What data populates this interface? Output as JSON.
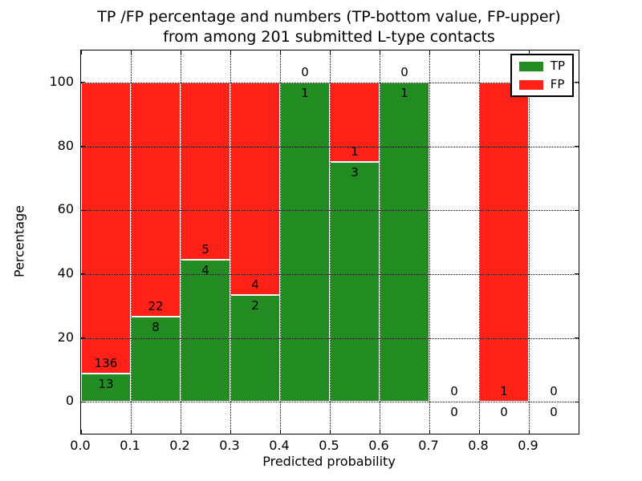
{
  "title": {
    "line1": "TP /FP percentage and numbers (TP-bottom value, FP-upper)",
    "line2": "from among 201 submitted L-type contacts"
  },
  "axes": {
    "xlabel": "Predicted probability",
    "ylabel": "Percentage"
  },
  "legend": {
    "items": [
      {
        "label": "TP",
        "color": "#228b22"
      },
      {
        "label": "FP",
        "color": "#ff2018"
      }
    ]
  },
  "chart_data": {
    "type": "bar",
    "subtype": "stacked-percentage-histogram",
    "title": "TP /FP percentage and numbers (TP-bottom value, FP-upper) from among 201 submitted L-type contacts",
    "xlabel": "Predicted probability",
    "ylabel": "Percentage",
    "total_contacts": 201,
    "bin_width": 0.1,
    "categories": [
      "0.0-0.1",
      "0.1-0.2",
      "0.2-0.3",
      "0.3-0.4",
      "0.4-0.5",
      "0.5-0.6",
      "0.6-0.7",
      "0.7-0.8",
      "0.8-0.9",
      "0.9-1.0"
    ],
    "x_tick_labels": [
      "0.0",
      "0.1",
      "0.2",
      "0.3",
      "0.4",
      "0.5",
      "0.6",
      "0.7",
      "0.8",
      "0.9"
    ],
    "y_ticks": [
      0,
      20,
      40,
      60,
      80,
      100
    ],
    "xlim": [
      0.0,
      1.0
    ],
    "ylim": [
      -10,
      110
    ],
    "grid": "dotted",
    "legend_position": "upper right",
    "annotation_rule": "FP count above TP count at top of TP segment",
    "series": [
      {
        "name": "TP",
        "color": "#228b22",
        "values": [
          13,
          8,
          4,
          2,
          1,
          3,
          1,
          0,
          0,
          0
        ]
      },
      {
        "name": "FP",
        "color": "#ff2018",
        "values": [
          136,
          22,
          5,
          4,
          0,
          1,
          0,
          0,
          1,
          0
        ]
      }
    ]
  }
}
